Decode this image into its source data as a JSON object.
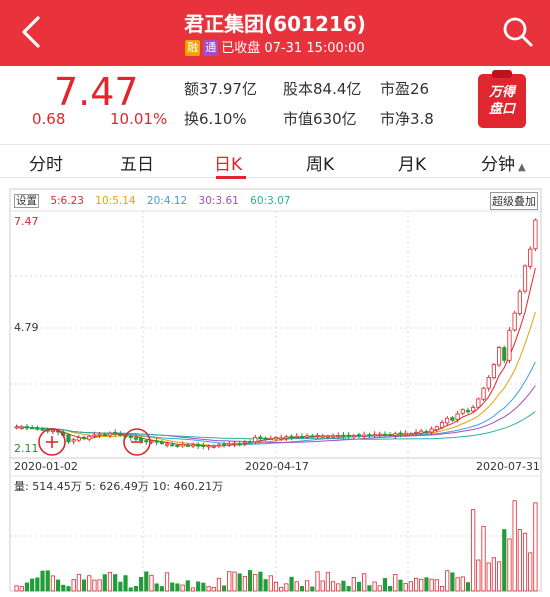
{
  "header": {
    "title": "君正集团(601216)",
    "badge_rong": "融",
    "badge_tong": "通",
    "status": "已收盘 07-31 15:00:00",
    "bg_color": "#e8323c"
  },
  "quote": {
    "price": "7.47",
    "change": "0.68",
    "change_pct": "10.01%",
    "amount": "额37.97亿",
    "turnover": "换6.10%",
    "shares": "股本84.4亿",
    "market_cap": "市值630亿",
    "pe": "市盈26",
    "pb": "市净3.8",
    "promo": [
      "万得",
      "盘口"
    ],
    "up_color": "#e0262e"
  },
  "tabs": [
    {
      "label": "分时"
    },
    {
      "label": "五日"
    },
    {
      "label": "日K"
    },
    {
      "label": "周K"
    },
    {
      "label": "月K"
    },
    {
      "label": "分钟"
    }
  ],
  "active_tab": "日K",
  "chart": {
    "settings_label": "设置",
    "overlay_label": "超级叠加",
    "ma": [
      {
        "label": "5:6.23",
        "color": "#e0262e"
      },
      {
        "label": "10:5.14",
        "color": "#e8a200"
      },
      {
        "label": "20:4.12",
        "color": "#3aa0e8"
      },
      {
        "label": "30:3.61",
        "color": "#a24cc9"
      },
      {
        "label": "60:3.07",
        "color": "#28b0a0"
      }
    ],
    "price_high": "7.47",
    "price_mid": "4.79",
    "price_low": "2.11",
    "dates": [
      "2020-01-02",
      "2020-04-17",
      "2020-07-31"
    ],
    "volume_line": "量: 514.45万   5: 626.49万   10: 460.21万"
  },
  "chart_data": {
    "type": "candlestick",
    "y_labels": [
      "7.47",
      "4.79",
      "2.11"
    ],
    "ylim": [
      2.11,
      7.47
    ],
    "x_labels": [
      "2020-01-02",
      "2020-04-17",
      "2020-07-31"
    ],
    "closes": [
      2.65,
      2.64,
      2.62,
      2.63,
      2.6,
      2.58,
      2.55,
      2.57,
      2.53,
      2.45,
      2.3,
      2.35,
      2.4,
      2.38,
      2.43,
      2.46,
      2.48,
      2.47,
      2.5,
      2.49,
      2.45,
      2.42,
      2.4,
      2.36,
      2.33,
      2.3,
      2.32,
      2.29,
      2.26,
      2.25,
      2.22,
      2.21,
      2.24,
      2.22,
      2.23,
      2.2,
      2.19,
      2.21,
      2.2,
      2.23,
      2.22,
      2.25,
      2.27,
      2.26,
      2.29,
      2.3,
      2.4,
      2.38,
      2.36,
      2.38,
      2.4,
      2.39,
      2.42,
      2.41,
      2.43,
      2.42,
      2.44,
      2.43,
      2.45,
      2.44,
      2.43,
      2.44,
      2.45,
      2.44,
      2.43,
      2.45,
      2.44,
      2.46,
      2.45,
      2.47,
      2.48,
      2.47,
      2.46,
      2.49,
      2.48,
      2.5,
      2.49,
      2.52,
      2.55,
      2.54,
      2.6,
      2.65,
      2.75,
      2.85,
      2.8,
      2.95,
      3.05,
      3.0,
      3.1,
      3.3,
      3.55,
      3.8,
      4.1,
      4.5,
      4.2,
      4.9,
      5.3,
      5.8,
      6.4,
      6.79,
      7.47
    ],
    "volume_recent": "514.45万"
  }
}
